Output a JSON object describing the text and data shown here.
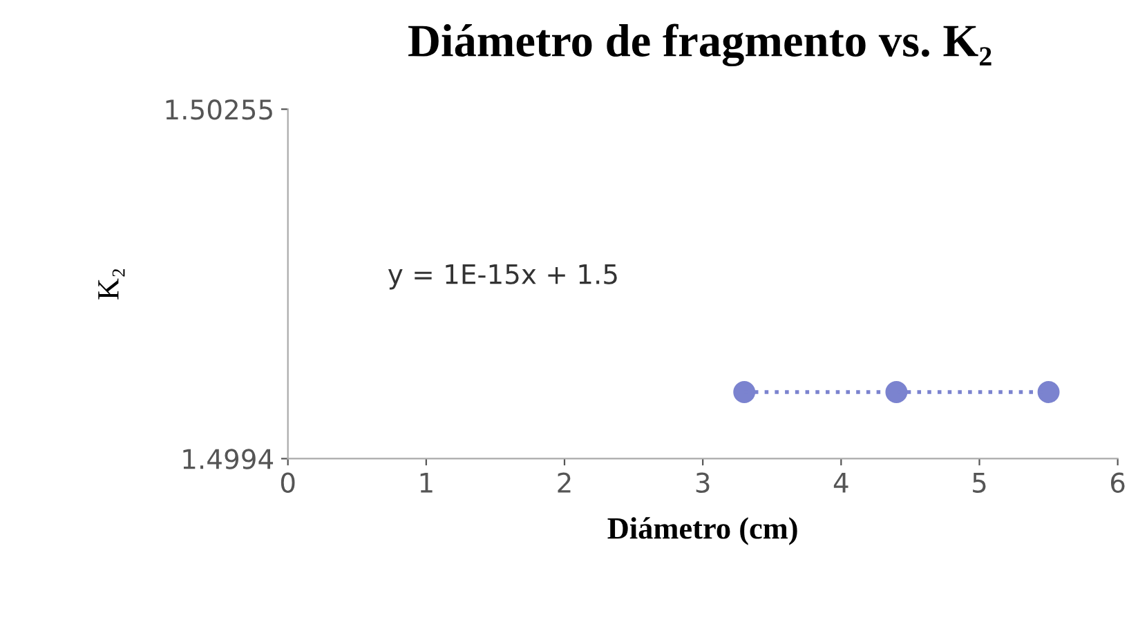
{
  "chart_data": {
    "type": "scatter",
    "title": "Diámetro de fragmento vs. K₂",
    "xlabel": "Diámetro (cm)",
    "ylabel": "K₂",
    "x": [
      3.3,
      4.4,
      5.5
    ],
    "marker": "circle",
    "series": [
      {
        "color": "#7b83cf",
        "values": [
          1.5,
          1.5,
          1.5
        ]
      },
      {
        "type": "line",
        "color": "#7b83cf",
        "x": [
          3.3,
          5.5
        ],
        "values": [
          1.5,
          1.5
        ],
        "line_style": "dotted",
        "marker": "none"
      }
    ],
    "annotations": [
      "y = 1E-15x + 1.5"
    ],
    "xlim": [
      0,
      6
    ],
    "xticks": [
      0,
      1,
      2,
      3,
      4,
      5,
      6
    ],
    "ylim": [
      1.4994,
      1.50255
    ],
    "yticks": [
      1.4994,
      1.50255
    ],
    "grid": false,
    "legend": false
  }
}
